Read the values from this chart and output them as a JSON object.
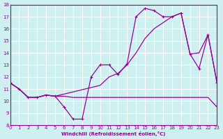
{
  "xlabel": "Windchill (Refroidissement éolien,°C)",
  "bg_color": "#cff0f0",
  "line_color": "#990099",
  "grid_color": "#ffffff",
  "xlim": [
    0,
    23
  ],
  "ylim": [
    8,
    18
  ],
  "xticks": [
    0,
    1,
    2,
    3,
    4,
    5,
    6,
    7,
    8,
    9,
    10,
    11,
    12,
    13,
    14,
    15,
    16,
    17,
    18,
    19,
    20,
    21,
    22,
    23
  ],
  "yticks": [
    8,
    9,
    10,
    11,
    12,
    13,
    14,
    15,
    16,
    17,
    18
  ],
  "line1_x": [
    0,
    1,
    2,
    3,
    4,
    5,
    6,
    7,
    8,
    9,
    10,
    11,
    12,
    13,
    14,
    15,
    16,
    17,
    18,
    19,
    20,
    21,
    22,
    23
  ],
  "line1_y": [
    11.5,
    11.0,
    10.3,
    10.3,
    10.5,
    10.4,
    9.5,
    8.5,
    8.5,
    12.0,
    13.0,
    13.0,
    12.2,
    13.1,
    17.0,
    17.7,
    17.5,
    17.0,
    17.0,
    17.3,
    13.9,
    12.7,
    15.5,
    11.5
  ],
  "line2_x": [
    0,
    1,
    2,
    3,
    4,
    5,
    10,
    11,
    12,
    13,
    14,
    15,
    16,
    17,
    18,
    19,
    20,
    21,
    22,
    23
  ],
  "line2_y": [
    11.5,
    11.0,
    10.3,
    10.3,
    10.5,
    10.4,
    11.3,
    12.0,
    12.3,
    13.0,
    14.0,
    15.2,
    16.0,
    16.5,
    17.0,
    17.3,
    13.9,
    14.0,
    15.5,
    11.5
  ],
  "line3_x": [
    0,
    1,
    2,
    3,
    4,
    5,
    6,
    7,
    8,
    9,
    10,
    11,
    12,
    13,
    14,
    15,
    16,
    17,
    18,
    19,
    20,
    21,
    22,
    23
  ],
  "line3_y": [
    11.5,
    11.0,
    10.3,
    10.3,
    10.5,
    10.4,
    10.4,
    10.3,
    10.3,
    10.3,
    10.3,
    10.3,
    10.3,
    10.3,
    10.3,
    10.3,
    10.3,
    10.3,
    10.3,
    10.3,
    10.3,
    10.3,
    10.3,
    9.5
  ]
}
